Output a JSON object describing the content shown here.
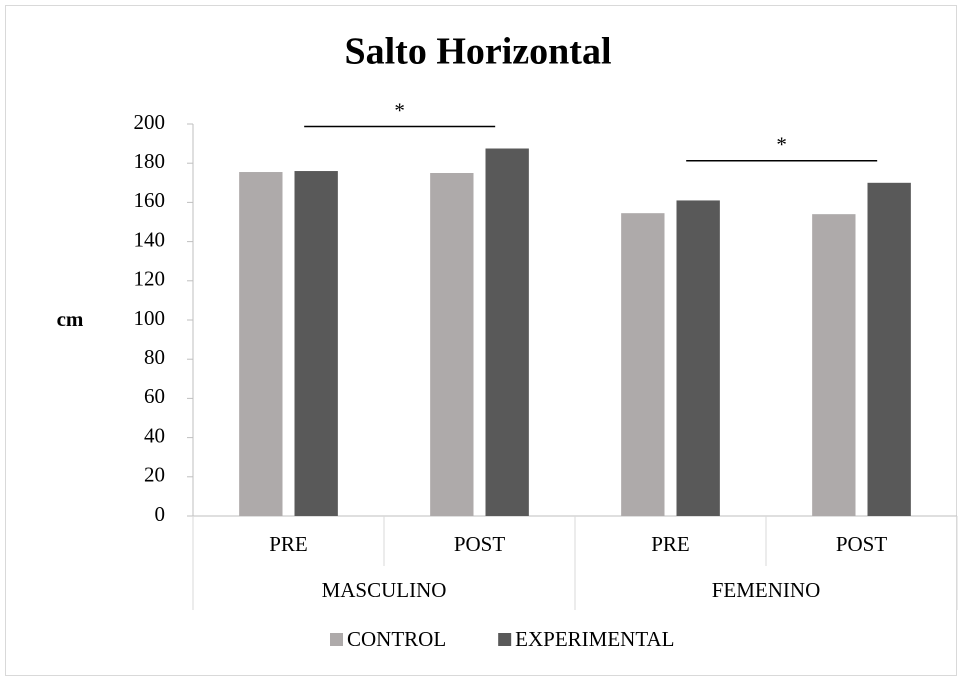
{
  "chart_data": {
    "type": "bar",
    "title": "Salto Horizontal",
    "ylabel": "cm",
    "categories": [
      "PRE",
      "POST",
      "PRE",
      "POST"
    ],
    "groups": [
      "MASCULINO",
      "FEMENINO"
    ],
    "series": [
      {
        "name": "CONTROL",
        "color": "#aeaaaa",
        "values": [
          175.5,
          175,
          154.5,
          154
        ]
      },
      {
        "name": "EXPERIMENTAL",
        "color": "#595959",
        "values": [
          176,
          187.5,
          161,
          170
        ]
      }
    ],
    "ylim": [
      0,
      200
    ],
    "yticks": [
      0,
      20,
      40,
      60,
      80,
      100,
      120,
      140,
      160,
      180,
      200
    ],
    "grid": false,
    "legend": "bottom",
    "annotations": [
      "*",
      "*"
    ]
  }
}
